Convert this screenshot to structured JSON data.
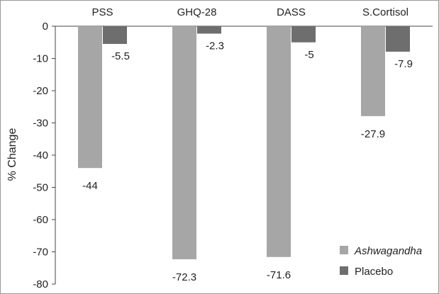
{
  "chart_data": {
    "type": "bar",
    "title": "",
    "xlabel": "",
    "ylabel": "% Change",
    "categories": [
      "PSS",
      "GHQ-28",
      "DASS",
      "S.Cortisol"
    ],
    "series": [
      {
        "name": "Ashwagandha",
        "color": "#a6a6a6",
        "values": [
          -44,
          -72.3,
          -71.6,
          -27.9
        ],
        "labels": [
          "-44",
          "-72.3",
          "-71.6",
          "-27.9"
        ]
      },
      {
        "name": "Placebo",
        "color": "#6e6e6e",
        "values": [
          -5.5,
          -2.3,
          -5,
          -7.9
        ],
        "labels": [
          "-5.5",
          "-2.3",
          "-5",
          "-7.9"
        ]
      }
    ],
    "ylim": [
      -80,
      0
    ],
    "yticks": [
      0,
      -10,
      -20,
      -30,
      -40,
      -50,
      -60,
      -70,
      -80
    ],
    "grid": false,
    "category_labels_position": "top",
    "legend": {
      "position": "bottom-right"
    }
  }
}
